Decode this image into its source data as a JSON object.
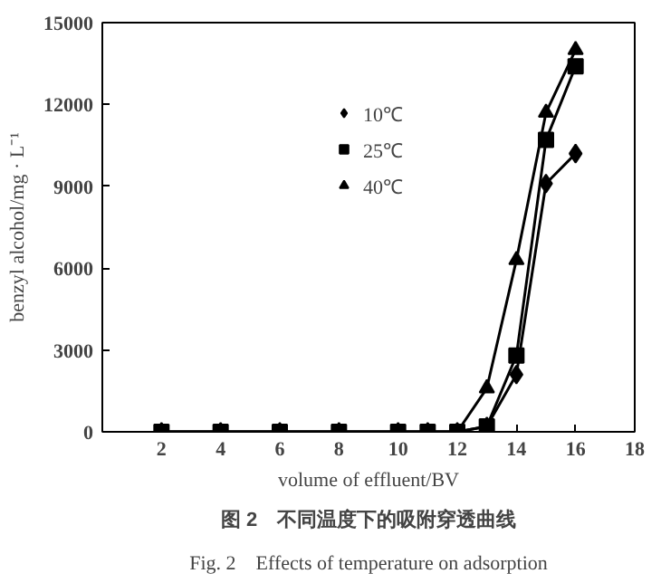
{
  "chart_data": {
    "type": "line",
    "title": "图 2　不同温度下的吸附穿透曲线",
    "subtitle": "Fig. 2　Effects of temperature on adsorption",
    "xlabel": "volume of effluent/BV",
    "ylabel": "benzyl alcohol/mg · L⁻¹",
    "x": [
      2,
      4,
      6,
      8,
      10,
      11,
      12,
      13,
      14,
      15,
      16
    ],
    "series": [
      {
        "name": "10℃",
        "color": "#000000",
        "marker": "diamond",
        "values": [
          0,
          0,
          0,
          0,
          0,
          0,
          0,
          200,
          2100,
          9100,
          10200
        ]
      },
      {
        "name": "25℃",
        "color": "#000000",
        "marker": "square",
        "values": [
          0,
          0,
          0,
          0,
          0,
          0,
          0,
          200,
          2800,
          10700,
          13400
        ]
      },
      {
        "name": "40℃",
        "color": "#000000",
        "marker": "triangle",
        "values": [
          0,
          0,
          0,
          0,
          0,
          0,
          0,
          1600,
          6300,
          11700,
          14000
        ]
      }
    ],
    "xlim": [
      0,
      18
    ],
    "xticks": [
      2,
      4,
      6,
      8,
      10,
      12,
      14,
      16,
      18
    ],
    "ylim": [
      0,
      15000
    ],
    "yticks": [
      0,
      3000,
      6000,
      9000,
      12000,
      15000
    ],
    "grid": false,
    "legend": "top",
    "line_style": "solid"
  }
}
